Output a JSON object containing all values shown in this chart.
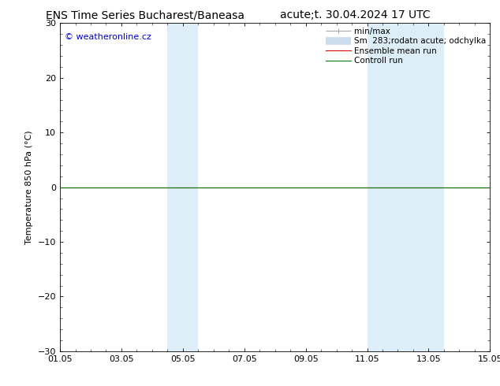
{
  "title_left": "ENS Time Series Bucharest/Baneasa",
  "title_right": "acute;t. 30.04.2024 17 UTC",
  "ylabel": "Temperature 850 hPa (°C)",
  "ylim": [
    -30,
    30
  ],
  "yticks": [
    -30,
    -20,
    -10,
    0,
    10,
    20,
    30
  ],
  "xlim_num": [
    0,
    14
  ],
  "xtick_positions": [
    0,
    2,
    4,
    6,
    8,
    10,
    12,
    14
  ],
  "xtick_labels": [
    "01.05",
    "03.05",
    "05.05",
    "07.05",
    "09.05",
    "11.05",
    "13.05",
    "15.05"
  ],
  "shaded_bands": [
    {
      "x_start": 3.5,
      "x_end": 4.5,
      "color": "#ddeef8"
    },
    {
      "x_start": 10.0,
      "x_end": 12.5,
      "color": "#ddeef8"
    }
  ],
  "zero_line_y": 0,
  "ensemble_mean_color": "#dd0000",
  "control_run_color": "#007700",
  "minmax_color": "#aaaaaa",
  "spread_color": "#ccddee",
  "background_color": "#ffffff",
  "plot_bg_color": "#ffffff",
  "copyright_text": "© weatheronline.cz",
  "copyright_color": "#0000cc",
  "title_fontsize": 10,
  "tick_fontsize": 8,
  "label_fontsize": 8,
  "copyright_fontsize": 8,
  "legend_fontsize": 7.5
}
